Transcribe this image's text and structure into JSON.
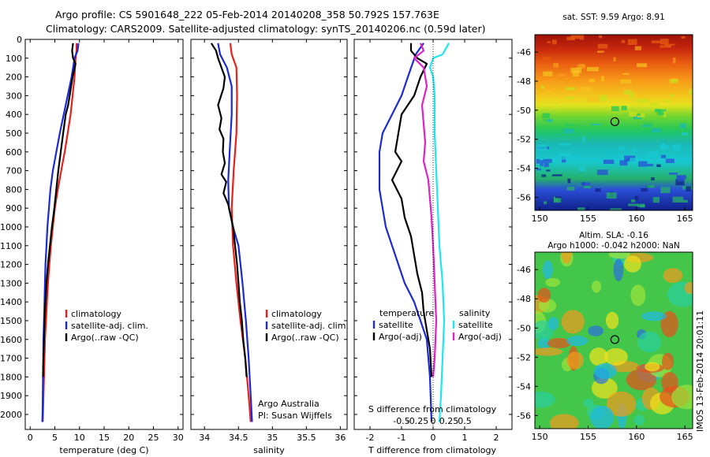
{
  "title": {
    "line1": "Argo profile: CS 5901648_222 05-Feb-2014 20140208_358 50.792S 157.763E",
    "line2": "Climatology: CARS2009. Satellite-adjusted climatology: synTS_20140206.nc (0.59d later)"
  },
  "footer_stamp": "IMOS 13-Feb-2014 20:01:11",
  "colors": {
    "climatology": "#e8201c",
    "satellite": "#1b2ad6",
    "argo": "#000000",
    "satellite_s": "#1ee6f0",
    "argo_s": "#e020c8"
  },
  "chart_data": [
    {
      "id": "temperature",
      "type": "line",
      "xlabel": "temperature (deg C)",
      "ylabel": "",
      "xlim": [
        -1,
        31
      ],
      "ylim": [
        2080,
        0
      ],
      "xticks": [
        0,
        5,
        10,
        15,
        20,
        25,
        30
      ],
      "yticks": [
        0,
        100,
        200,
        300,
        400,
        500,
        600,
        700,
        800,
        900,
        1000,
        1100,
        1200,
        1300,
        1400,
        1500,
        1600,
        1700,
        1800,
        1900,
        2000
      ],
      "legend": {
        "position": "lower-right",
        "entries": [
          "climatology",
          "satellite-adj. clim.",
          "Argo(..raw -QC)"
        ]
      },
      "series": [
        {
          "name": "climatology",
          "color": "#e8201c",
          "points": [
            [
              9.4,
              20
            ],
            [
              9.4,
              60
            ],
            [
              9.2,
              100
            ],
            [
              9.0,
              200
            ],
            [
              8.6,
              300
            ],
            [
              8.2,
              400
            ],
            [
              7.6,
              500
            ],
            [
              7.0,
              600
            ],
            [
              6.3,
              700
            ],
            [
              5.6,
              800
            ],
            [
              5.0,
              900
            ],
            [
              4.6,
              1000
            ],
            [
              4.2,
              1100
            ],
            [
              3.9,
              1200
            ],
            [
              3.6,
              1300
            ],
            [
              3.4,
              1400
            ],
            [
              3.2,
              1500
            ],
            [
              3.0,
              1600
            ],
            [
              2.9,
              1700
            ],
            [
              2.8,
              1800
            ],
            [
              2.7,
              1900
            ],
            [
              2.6,
              2000
            ],
            [
              2.55,
              2040
            ]
          ]
        },
        {
          "name": "satellite-adj. clim.",
          "color": "#1b2ad6",
          "points": [
            [
              9.8,
              20
            ],
            [
              9.6,
              60
            ],
            [
              9.0,
              100
            ],
            [
              8.4,
              200
            ],
            [
              7.6,
              300
            ],
            [
              6.8,
              400
            ],
            [
              6.0,
              500
            ],
            [
              5.3,
              600
            ],
            [
              4.6,
              700
            ],
            [
              4.1,
              800
            ],
            [
              3.8,
              900
            ],
            [
              3.5,
              1000
            ],
            [
              3.3,
              1100
            ],
            [
              3.1,
              1200
            ],
            [
              3.0,
              1300
            ],
            [
              2.9,
              1400
            ],
            [
              2.8,
              1500
            ],
            [
              2.7,
              1600
            ],
            [
              2.65,
              1700
            ],
            [
              2.6,
              1800
            ],
            [
              2.55,
              1900
            ],
            [
              2.5,
              2000
            ],
            [
              2.45,
              2040
            ]
          ]
        },
        {
          "name": "Argo(..raw -QC)",
          "color": "#000000",
          "points": [
            [
              8.7,
              20
            ],
            [
              8.5,
              60
            ],
            [
              8.7,
              100
            ],
            [
              9.2,
              130
            ],
            [
              8.6,
              200
            ],
            [
              8.0,
              300
            ],
            [
              7.7,
              350
            ],
            [
              7.2,
              400
            ],
            [
              6.7,
              500
            ],
            [
              6.2,
              600
            ],
            [
              5.7,
              700
            ],
            [
              5.3,
              800
            ],
            [
              4.9,
              900
            ],
            [
              4.4,
              1000
            ],
            [
              4.0,
              1100
            ],
            [
              3.6,
              1200
            ],
            [
              3.3,
              1300
            ],
            [
              3.1,
              1400
            ],
            [
              2.9,
              1500
            ],
            [
              2.8,
              1600
            ],
            [
              2.7,
              1700
            ],
            [
              2.6,
              1800
            ]
          ]
        }
      ]
    },
    {
      "id": "salinity",
      "type": "line",
      "xlabel": "salinity",
      "ylabel": "",
      "xlim": [
        33.8,
        36.1
      ],
      "ylim": [
        2080,
        0
      ],
      "xticks": [
        34,
        34.5,
        35,
        35.5,
        36
      ],
      "legend": {
        "position": "lower-right",
        "entries": [
          "climatology",
          "satellite-adj. clim.",
          "Argo(..raw -QC)"
        ]
      },
      "annotation": {
        "line1": "Argo Australia",
        "line2": "PI: Susan Wijffels"
      },
      "series": [
        {
          "name": "climatology",
          "color": "#e8201c",
          "points": [
            [
              34.38,
              20
            ],
            [
              34.4,
              80
            ],
            [
              34.47,
              150
            ],
            [
              34.48,
              300
            ],
            [
              34.47,
              500
            ],
            [
              34.43,
              700
            ],
            [
              34.4,
              900
            ],
            [
              34.42,
              1100
            ],
            [
              34.47,
              1300
            ],
            [
              34.53,
              1500
            ],
            [
              34.6,
              1700
            ],
            [
              34.65,
              1900
            ],
            [
              34.68,
              2040
            ]
          ]
        },
        {
          "name": "satellite-adj. clim.",
          "color": "#1b2ad6",
          "points": [
            [
              34.2,
              20
            ],
            [
              34.23,
              80
            ],
            [
              34.33,
              150
            ],
            [
              34.4,
              250
            ],
            [
              34.4,
              400
            ],
            [
              34.37,
              600
            ],
            [
              34.35,
              750
            ],
            [
              34.36,
              900
            ],
            [
              34.42,
              1000
            ],
            [
              34.5,
              1100
            ],
            [
              34.56,
              1300
            ],
            [
              34.61,
              1500
            ],
            [
              34.65,
              1700
            ],
            [
              34.68,
              1900
            ],
            [
              34.7,
              2040
            ]
          ]
        },
        {
          "name": "Argo(..raw -QC)",
          "color": "#000000",
          "points": [
            [
              34.1,
              20
            ],
            [
              34.17,
              60
            ],
            [
              34.2,
              100
            ],
            [
              34.25,
              150
            ],
            [
              34.3,
              200
            ],
            [
              34.28,
              260
            ],
            [
              34.2,
              350
            ],
            [
              34.25,
              420
            ],
            [
              34.22,
              480
            ],
            [
              34.28,
              530
            ],
            [
              34.27,
              600
            ],
            [
              34.3,
              660
            ],
            [
              34.25,
              720
            ],
            [
              34.32,
              760
            ],
            [
              34.28,
              820
            ],
            [
              34.35,
              880
            ],
            [
              34.38,
              930
            ],
            [
              34.42,
              1000
            ],
            [
              34.45,
              1100
            ],
            [
              34.48,
              1200
            ],
            [
              34.5,
              1300
            ],
            [
              34.52,
              1400
            ],
            [
              34.55,
              1500
            ],
            [
              34.57,
              1600
            ],
            [
              34.6,
              1700
            ],
            [
              34.62,
              1800
            ]
          ]
        }
      ]
    },
    {
      "id": "difference",
      "type": "line",
      "xlabel": "T difference from climatology",
      "top_axis_label": "S difference from climatology",
      "xlim": [
        -2.5,
        2.5
      ],
      "ylim": [
        2080,
        0
      ],
      "xticks": [
        -2,
        -1,
        0,
        1,
        2
      ],
      "top_ticks": [
        "-0.5",
        "-0.25",
        "0",
        "0.25",
        "0.5"
      ],
      "legend": {
        "position": "lower",
        "groups": [
          {
            "title": "temperature",
            "entries": [
              "satellite",
              "Argo(-adj)"
            ]
          },
          {
            "title": "salinity",
            "entries": [
              "satellite",
              "Argo(-adj)"
            ]
          }
        ]
      },
      "series": [
        {
          "name": "satellite",
          "group": "temperature",
          "color": "#1b2ad6",
          "points": [
            [
              -0.3,
              20
            ],
            [
              -0.55,
              80
            ],
            [
              -0.8,
              200
            ],
            [
              -1.0,
              300
            ],
            [
              -1.3,
              400
            ],
            [
              -1.6,
              500
            ],
            [
              -1.7,
              600
            ],
            [
              -1.7,
              700
            ],
            [
              -1.7,
              800
            ],
            [
              -1.6,
              900
            ],
            [
              -1.5,
              1000
            ],
            [
              -1.3,
              1100
            ],
            [
              -1.1,
              1200
            ],
            [
              -0.9,
              1300
            ],
            [
              -0.6,
              1400
            ],
            [
              -0.4,
              1500
            ],
            [
              -0.2,
              1600
            ],
            [
              -0.1,
              1800
            ],
            [
              -0.05,
              2040
            ]
          ]
        },
        {
          "name": "Argo(-adj)",
          "group": "temperature",
          "color": "#000000",
          "points": [
            [
              -0.7,
              20
            ],
            [
              -0.7,
              60
            ],
            [
              -0.5,
              100
            ],
            [
              -0.2,
              130
            ],
            [
              -0.4,
              200
            ],
            [
              -0.6,
              300
            ],
            [
              -1.0,
              400
            ],
            [
              -1.1,
              500
            ],
            [
              -1.2,
              600
            ],
            [
              -1.0,
              650
            ],
            [
              -1.3,
              750
            ],
            [
              -1.0,
              850
            ],
            [
              -0.9,
              950
            ],
            [
              -0.7,
              1050
            ],
            [
              -0.6,
              1150
            ],
            [
              -0.5,
              1250
            ],
            [
              -0.35,
              1350
            ],
            [
              -0.3,
              1450
            ],
            [
              -0.2,
              1550
            ],
            [
              -0.1,
              1650
            ],
            [
              -0.05,
              1800
            ]
          ]
        },
        {
          "name": "satellite",
          "group": "salinity",
          "color": "#1ee6f0",
          "points": [
            [
              0.5,
              20
            ],
            [
              0.3,
              80
            ],
            [
              0.0,
              100
            ],
            [
              -0.1,
              150
            ],
            [
              0.0,
              200
            ],
            [
              0.05,
              300
            ],
            [
              0.05,
              500
            ],
            [
              0.1,
              700
            ],
            [
              0.15,
              900
            ],
            [
              0.2,
              1100
            ],
            [
              0.3,
              1300
            ],
            [
              0.35,
              1500
            ],
            [
              0.3,
              1700
            ],
            [
              0.25,
              1900
            ],
            [
              0.2,
              2040
            ]
          ]
        },
        {
          "name": "Argo(-adj)",
          "group": "salinity",
          "color": "#e020c8",
          "points": [
            [
              -0.4,
              20
            ],
            [
              -0.3,
              60
            ],
            [
              -0.6,
              100
            ],
            [
              -0.3,
              150
            ],
            [
              -0.2,
              250
            ],
            [
              -0.35,
              350
            ],
            [
              -0.3,
              450
            ],
            [
              -0.25,
              550
            ],
            [
              -0.3,
              650
            ],
            [
              -0.15,
              750
            ],
            [
              -0.1,
              850
            ],
            [
              -0.05,
              950
            ],
            [
              0.0,
              1100
            ],
            [
              0.05,
              1300
            ],
            [
              0.1,
              1500
            ],
            [
              0.05,
              1700
            ],
            [
              0.0,
              1800
            ]
          ]
        }
      ]
    }
  ],
  "maps": {
    "sst": {
      "title": "sat. SST: 9.59 Argo: 8.91",
      "xticks": [
        "150",
        "155",
        "160",
        "165"
      ],
      "yticks": [
        "-46",
        "-48",
        "-50",
        "-52",
        "-54",
        "-56"
      ],
      "xlim": [
        149.5,
        165.8
      ],
      "ylim": [
        -56.9,
        -44.8
      ],
      "marker": {
        "lon": 157.763,
        "lat": -50.792
      }
    },
    "sla": {
      "title_line1": "Altim. SLA: -0.16",
      "title_line2": "Argo h1000: -0.042 h2000: NaN",
      "xticks": [
        "150",
        "155",
        "160",
        "165"
      ],
      "yticks": [
        "-46",
        "-48",
        "-50",
        "-52",
        "-54",
        "-56"
      ],
      "xlim": [
        149.5,
        165.8
      ],
      "ylim": [
        -56.9,
        -44.8
      ],
      "marker": {
        "lon": 157.763,
        "lat": -50.792
      }
    }
  }
}
